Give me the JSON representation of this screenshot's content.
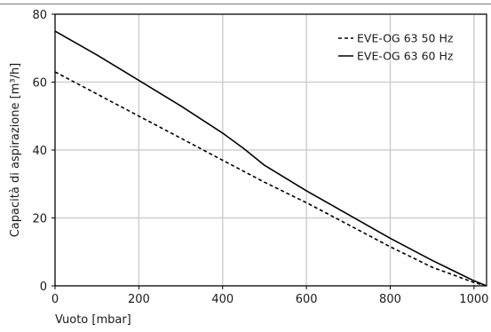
{
  "chart_data": {
    "type": "line",
    "title": "",
    "xlabel": "Vuoto [mbar]",
    "ylabel": "Capacità di aspirazione [m³/h]",
    "xlim": [
      0,
      1030
    ],
    "ylim": [
      0,
      80
    ],
    "xticks": [
      0,
      200,
      400,
      600,
      800,
      1000
    ],
    "yticks": [
      0,
      20,
      40,
      60,
      80
    ],
    "grid": true,
    "legend_position": "top-right",
    "series": [
      {
        "name": "EVE-OG 63 50 Hz",
        "style": "dashed",
        "color": "#000000",
        "x": [
          0,
          100,
          200,
          300,
          400,
          500,
          600,
          700,
          800,
          900,
          1000,
          1030
        ],
        "y": [
          63,
          56.5,
          50,
          43.5,
          37,
          30.5,
          24.5,
          18,
          11.5,
          5.5,
          1,
          0
        ]
      },
      {
        "name": "EVE-OG 63 60 Hz",
        "style": "solid",
        "color": "#000000",
        "x": [
          0,
          100,
          200,
          300,
          400,
          450,
          500,
          600,
          700,
          800,
          900,
          1000,
          1030
        ],
        "y": [
          75,
          68,
          60.5,
          53,
          45,
          40.5,
          35.5,
          28,
          21,
          14,
          7.5,
          1.5,
          0
        ]
      }
    ]
  }
}
